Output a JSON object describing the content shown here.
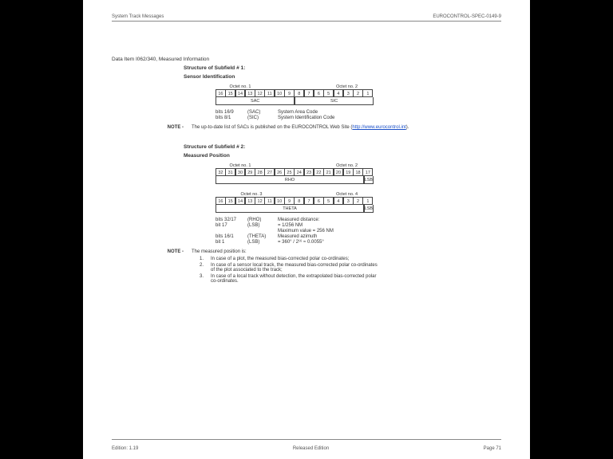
{
  "header": {
    "left": "System Track Messages",
    "right": "EUROCONTROL-SPEC-0149-9"
  },
  "footer": {
    "left": "Edition: 1.19",
    "center": "Released Edition",
    "right": "Page 71"
  },
  "dataItem": "Data Item I062/340, Measured Information",
  "sub1": {
    "title1": "Structure of Subfield # 1:",
    "title2": "Sensor Identification",
    "oct1": "Octet no. 1",
    "oct2": "Octet no. 2",
    "bits": [
      "16",
      "15",
      "14",
      "13",
      "12",
      "11",
      "10",
      "9",
      "8",
      "7",
      "6",
      "5",
      "4",
      "3",
      "2",
      "1"
    ],
    "merge": [
      "SAC",
      "SIC"
    ],
    "defs": [
      [
        "bits 16/9",
        "(SAC)",
        "System Area Code"
      ],
      [
        "bits 8/1",
        "(SIC)",
        "System Identification Code"
      ]
    ],
    "noteLbl": "NOTE -",
    "note": "The up-to-date list of SACs is published on the EUROCONTROL Web Site (",
    "noteLink": "http://www.eurocontrol.int",
    "noteEnd": ")."
  },
  "sub2": {
    "title1": "Structure of Subfield # 2:",
    "title2": "Measured Position",
    "oct1": "Octet no. 1",
    "oct2": "Octet no. 2",
    "oct3": "Octet no. 3",
    "oct4": "Octet no. 4",
    "bitsA": [
      "32",
      "31",
      "30",
      "29",
      "28",
      "27",
      "26",
      "25",
      "24",
      "23",
      "22",
      "21",
      "20",
      "19",
      "18",
      "17"
    ],
    "bitsB": [
      "16",
      "15",
      "14",
      "13",
      "12",
      "11",
      "10",
      "9",
      "8",
      "7",
      "6",
      "5",
      "4",
      "3",
      "2",
      "1"
    ],
    "mergeA": [
      "RHO",
      "LSB"
    ],
    "mergeB": [
      "THETA",
      "LSB"
    ],
    "defs": [
      [
        "bits 32/17",
        "(RHO)",
        "Measured distance:"
      ],
      [
        "bit 17",
        "(LSB)",
        "= 1/256 NM"
      ],
      [
        "",
        "",
        "   Maximum value = 256 NM"
      ],
      [
        "bits 16/1",
        "(THETA)",
        "Measured azimuth"
      ],
      [
        "bit 1",
        "(LSB)",
        "= 360° / 2¹⁶ ≈ 0.0055°"
      ]
    ],
    "noteLbl": "NOTE -",
    "noteIntro": "The measured position is:",
    "items": [
      "In case of a plot, the measured bias-corrected polar co-ordinates;",
      "In case of a sensor local track, the measured bias-corrected polar co-ordinates of the plot associated to the track;",
      "In case of a local track without detection, the extrapolated bias-corrected polar co-ordinates."
    ]
  },
  "colors": {
    "text": "#333333",
    "rule": "#888888",
    "link": "#1a4fc7",
    "bg": "#ffffff"
  }
}
